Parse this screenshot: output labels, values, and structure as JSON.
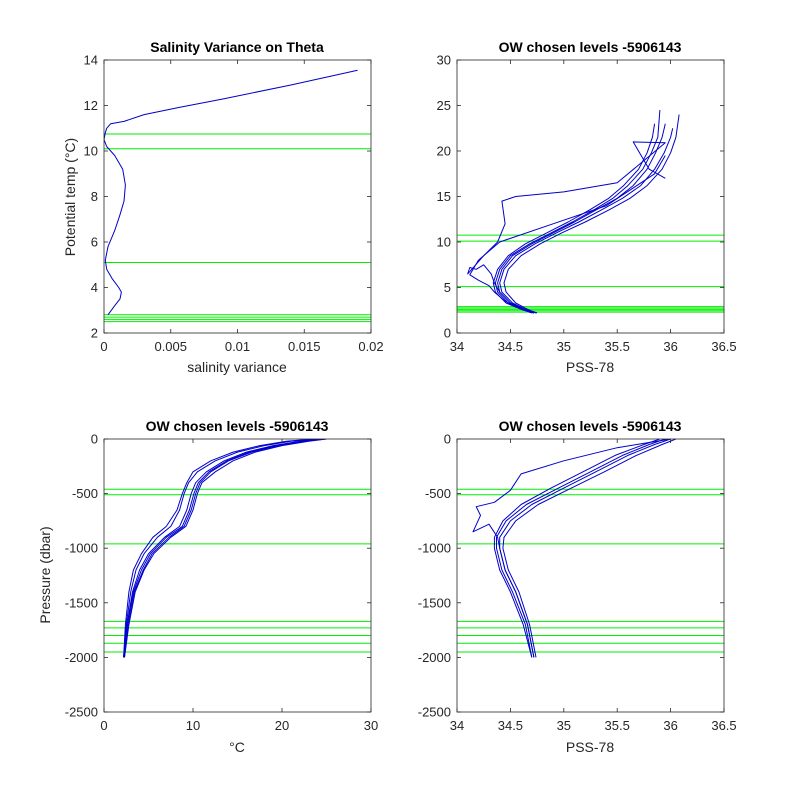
{
  "colors": {
    "profile": "#0000cc",
    "level": "#00ee00",
    "axis": "#262626",
    "background": "#ffffff"
  },
  "chart_data": [
    {
      "type": "line",
      "title": "Salinity Variance on Theta",
      "xlabel": "salinity variance",
      "ylabel": "Potential temp (°C)",
      "xlim": [
        0,
        0.02
      ],
      "ylim": [
        2,
        14
      ],
      "xticks": [
        0,
        0.005,
        0.01,
        0.015,
        0.02
      ],
      "xticklabels": [
        "0",
        "0.005",
        "0.01",
        "0.015",
        "0.02"
      ],
      "yticks": [
        2,
        4,
        6,
        8,
        10,
        12,
        14
      ],
      "yticklabels": [
        "2",
        "4",
        "6",
        "8",
        "10",
        "12",
        "14"
      ],
      "series": [
        {
          "x": [
            0.0003,
            0.0008,
            0.0012,
            0.0013,
            0.0011,
            0.0006,
            0.0002,
            0.0001,
            0.0003,
            0.0008,
            0.0012,
            0.0015,
            0.0016,
            0.0014,
            0.0008,
            0.0002,
            0,
            0.0001,
            0.0002,
            0.0005,
            0.0015,
            0.003,
            0.0055,
            0.009,
            0.014,
            0.019
          ],
          "y": [
            2.8,
            3.2,
            3.5,
            3.8,
            4.0,
            4.4,
            4.8,
            5.2,
            5.8,
            6.5,
            7.2,
            7.8,
            8.5,
            9.2,
            9.8,
            10.2,
            10.5,
            10.8,
            11.0,
            11.2,
            11.3,
            11.6,
            11.9,
            12.3,
            12.9,
            13.55
          ]
        }
      ],
      "hlines": [
        2.5,
        2.6,
        2.7,
        2.8,
        5.1,
        10.1,
        10.75
      ]
    },
    {
      "type": "line",
      "title": "OW chosen levels -5906143",
      "xlabel": "PSS-78",
      "ylabel": "",
      "xlim": [
        34,
        36.5
      ],
      "ylim": [
        0,
        30
      ],
      "xticks": [
        34,
        34.5,
        35,
        35.5,
        36,
        36.5
      ],
      "xticklabels": [
        "34",
        "34.5",
        "35",
        "35.5",
        "36",
        "36.5"
      ],
      "yticks": [
        0,
        5,
        10,
        15,
        20,
        25,
        30
      ],
      "yticklabels": [
        "0",
        "5",
        "10",
        "15",
        "20",
        "25",
        "30"
      ],
      "series": [
        {
          "x": [
            34.72,
            34.62,
            34.5,
            34.4,
            34.38,
            34.42,
            34.52,
            34.7,
            34.9,
            35.1,
            35.3,
            35.5,
            35.65,
            35.78,
            35.86,
            35.92,
            35.95
          ],
          "y": [
            2.2,
            2.6,
            3.3,
            4.5,
            5.5,
            7.0,
            8.5,
            9.8,
            11.0,
            12.2,
            13.5,
            14.8,
            16.2,
            18.0,
            19.8,
            21.5,
            23.0
          ]
        },
        {
          "x": [
            34.72,
            34.62,
            34.48,
            34.38,
            34.36,
            34.4,
            34.5,
            34.68,
            34.88,
            35.08,
            35.28,
            35.46,
            35.6,
            35.74,
            35.82,
            35.88,
            35.9
          ],
          "y": [
            2.2,
            2.6,
            3.3,
            4.5,
            5.5,
            7.0,
            8.5,
            9.8,
            11.0,
            12.2,
            13.5,
            14.8,
            16.2,
            18.0,
            19.8,
            21.5,
            24.5
          ]
        },
        {
          "x": [
            34.74,
            34.64,
            34.52,
            34.42,
            34.4,
            34.44,
            34.55,
            34.73,
            34.93,
            35.14,
            35.35,
            35.55,
            35.72,
            35.85,
            35.94,
            36.0,
            36.02
          ],
          "y": [
            2.2,
            2.6,
            3.3,
            4.5,
            5.5,
            7.0,
            8.5,
            9.8,
            11.0,
            12.2,
            13.5,
            14.8,
            16.2,
            18.0,
            19.8,
            21.5,
            22.5
          ]
        },
        {
          "x": [
            34.72,
            34.6,
            34.46,
            34.36,
            34.34,
            34.38,
            34.48,
            34.64,
            34.84,
            35.04,
            35.24,
            35.42,
            35.56,
            35.7,
            35.78,
            35.83,
            35.85
          ],
          "y": [
            2.2,
            2.6,
            3.3,
            4.5,
            5.5,
            7.0,
            8.5,
            9.8,
            11.0,
            12.2,
            13.5,
            14.8,
            16.2,
            18.0,
            19.8,
            21.5,
            23.0
          ]
        },
        {
          "x": [
            34.75,
            34.66,
            34.55,
            34.46,
            34.44,
            34.48,
            34.6,
            34.78,
            34.98,
            35.2,
            35.42,
            35.62,
            35.78,
            35.92,
            36.0,
            36.05,
            36.08
          ],
          "y": [
            2.2,
            2.6,
            3.3,
            4.5,
            5.5,
            7.0,
            8.5,
            9.8,
            11.0,
            12.2,
            13.5,
            14.8,
            16.2,
            18.0,
            19.8,
            21.5,
            24.0
          ]
        },
        {
          "x": [
            34.72,
            34.62,
            34.5,
            34.4,
            34.35,
            34.32,
            34.25,
            34.18,
            34.12,
            34.1,
            34.25,
            34.38,
            34.45,
            34.42,
            34.55,
            35.0,
            35.5,
            35.95,
            35.65,
            35.8,
            35.95
          ],
          "y": [
            2.2,
            2.6,
            3.3,
            4.5,
            5.5,
            6.5,
            7.5,
            7.0,
            7.2,
            6.5,
            8.5,
            10.0,
            12.0,
            14.5,
            15.0,
            15.5,
            16.5,
            20.9,
            21.0,
            18.0,
            17.0
          ]
        },
        {
          "x": [
            34.7,
            34.6,
            34.45,
            34.35,
            34.3,
            34.2,
            34.12,
            34.2,
            34.4,
            34.9,
            35.4,
            35.85,
            35.95
          ],
          "y": [
            2.2,
            2.6,
            3.5,
            4.5,
            5.2,
            5.8,
            6.4,
            8.0,
            10.0,
            12.0,
            14.0,
            17.5,
            19.5
          ]
        }
      ],
      "hlines": [
        2.3,
        2.45,
        2.6,
        2.75,
        2.9,
        5.1,
        10.1,
        10.75
      ]
    },
    {
      "type": "line",
      "title": "OW chosen levels -5906143",
      "xlabel": "°C",
      "ylabel": "Pressure (dbar)",
      "xlim": [
        0,
        30
      ],
      "ylim": [
        -2500,
        0
      ],
      "xticks": [
        0,
        10,
        20,
        30
      ],
      "xticklabels": [
        "0",
        "10",
        "20",
        "30"
      ],
      "yticks": [
        -2500,
        -2000,
        -1500,
        -1000,
        -500,
        0
      ],
      "yticklabels": [
        "-2500",
        "-2000",
        "-1500",
        "-1000",
        "-500",
        "0"
      ],
      "series": [
        {
          "x": [
            2.2,
            2.6,
            3.2,
            4.0,
            5.0,
            6.8,
            8.5,
            9.3,
            9.8,
            10.3,
            11.5,
            13.5,
            16.0,
            19.0,
            22.0,
            24.5
          ],
          "y": [
            -2000,
            -1700,
            -1400,
            -1200,
            -1050,
            -900,
            -800,
            -650,
            -500,
            -400,
            -300,
            -200,
            -120,
            -60,
            -20,
            0
          ]
        },
        {
          "x": [
            2.2,
            2.5,
            3.0,
            3.6,
            4.5,
            6.0,
            7.5,
            8.5,
            9.0,
            9.5,
            10.5,
            12.5,
            15.0,
            18.0,
            21.0,
            24.0
          ],
          "y": [
            -2000,
            -1700,
            -1400,
            -1200,
            -1050,
            -900,
            -800,
            -650,
            -500,
            -400,
            -300,
            -200,
            -120,
            -60,
            -20,
            0
          ]
        },
        {
          "x": [
            2.3,
            2.8,
            3.5,
            4.5,
            5.6,
            7.5,
            9.2,
            10.0,
            10.5,
            11.0,
            12.5,
            14.5,
            17.0,
            20.0,
            23.0,
            25.0
          ],
          "y": [
            -2000,
            -1700,
            -1400,
            -1200,
            -1050,
            -900,
            -800,
            -650,
            -500,
            -400,
            -300,
            -200,
            -120,
            -60,
            -20,
            0
          ]
        },
        {
          "x": [
            2.2,
            2.6,
            3.3,
            4.2,
            5.2,
            7.0,
            8.8,
            9.6,
            10.1,
            10.6,
            11.8,
            13.8,
            16.3,
            19.3,
            22.3,
            24.8
          ],
          "y": [
            -2000,
            -1700,
            -1400,
            -1200,
            -1050,
            -900,
            -800,
            -650,
            -500,
            -400,
            -300,
            -200,
            -120,
            -60,
            -20,
            0
          ]
        },
        {
          "x": [
            2.2,
            2.4,
            2.8,
            3.3,
            4.2,
            5.5,
            7.0,
            8.2,
            8.8,
            9.3,
            10.0,
            12.0,
            14.5,
            17.5,
            20.5,
            23.5
          ],
          "y": [
            -2000,
            -1700,
            -1400,
            -1200,
            -1050,
            -900,
            -800,
            -650,
            -500,
            -400,
            -300,
            -200,
            -120,
            -60,
            -20,
            0
          ]
        },
        {
          "x": [
            2.3,
            2.7,
            3.4,
            4.4,
            5.4,
            7.3,
            9.0,
            9.8,
            10.3,
            10.8,
            12.0,
            14.0,
            16.6,
            19.6,
            22.6,
            25.0
          ],
          "y": [
            -2000,
            -1700,
            -1400,
            -1200,
            -1050,
            -900,
            -800,
            -650,
            -500,
            -400,
            -300,
            -200,
            -120,
            -60,
            -20,
            0
          ]
        }
      ],
      "hlines": [
        -1670,
        -1730,
        -1800,
        -1870,
        -1950,
        -960,
        -460,
        -510
      ]
    },
    {
      "type": "line",
      "title": "OW chosen levels -5906143",
      "xlabel": "PSS-78",
      "ylabel": "",
      "xlim": [
        34,
        36.5
      ],
      "ylim": [
        -2500,
        0
      ],
      "xticks": [
        34,
        34.5,
        35,
        35.5,
        36,
        36.5
      ],
      "xticklabels": [
        "34",
        "34.5",
        "35",
        "35.5",
        "36",
        "36.5"
      ],
      "yticks": [
        -2500,
        -2000,
        -1500,
        -1000,
        -500,
        0
      ],
      "yticklabels": [
        "-2500",
        "-2000",
        "-1500",
        "-1000",
        "-500",
        "0"
      ],
      "series": [
        {
          "x": [
            34.72,
            34.66,
            34.55,
            34.45,
            34.4,
            34.4,
            34.5,
            34.7,
            35.0,
            35.3,
            35.6,
            35.85,
            36.0
          ],
          "y": [
            -2000,
            -1700,
            -1400,
            -1200,
            -1000,
            -900,
            -750,
            -600,
            -450,
            -300,
            -150,
            -50,
            0
          ]
        },
        {
          "x": [
            34.7,
            34.64,
            34.52,
            34.42,
            34.37,
            34.37,
            34.46,
            34.65,
            34.95,
            35.25,
            35.55,
            35.8,
            35.95
          ],
          "y": [
            -2000,
            -1700,
            -1400,
            -1200,
            -1000,
            -900,
            -750,
            -600,
            -450,
            -300,
            -150,
            -50,
            0
          ]
        },
        {
          "x": [
            34.74,
            34.68,
            34.58,
            34.48,
            34.43,
            34.44,
            34.55,
            34.76,
            35.07,
            35.38,
            35.68,
            35.92,
            36.05
          ],
          "y": [
            -2000,
            -1700,
            -1400,
            -1200,
            -1000,
            -900,
            -750,
            -600,
            -450,
            -300,
            -150,
            -50,
            0
          ]
        },
        {
          "x": [
            34.7,
            34.62,
            34.5,
            34.4,
            34.35,
            34.35,
            34.43,
            34.6,
            34.88,
            35.18,
            35.48,
            35.75,
            35.9
          ],
          "y": [
            -2000,
            -1700,
            -1400,
            -1200,
            -1000,
            -900,
            -750,
            -600,
            -450,
            -300,
            -150,
            -50,
            0
          ]
        },
        {
          "x": [
            34.72,
            34.66,
            34.55,
            34.45,
            34.4,
            34.38,
            34.3,
            34.15,
            34.22,
            34.18,
            34.35,
            34.5,
            34.6,
            35.0,
            35.5,
            36.0
          ],
          "y": [
            -2000,
            -1700,
            -1400,
            -1200,
            -1000,
            -900,
            -780,
            -850,
            -700,
            -620,
            -580,
            -470,
            -320,
            -200,
            -80,
            0
          ]
        }
      ],
      "hlines": [
        -1670,
        -1730,
        -1800,
        -1870,
        -1950,
        -960,
        -460,
        -510
      ]
    }
  ]
}
